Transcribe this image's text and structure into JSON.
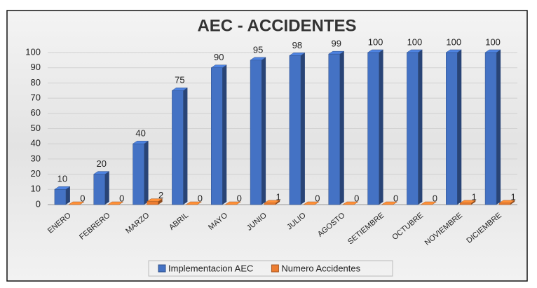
{
  "chart_data": {
    "type": "bar3d",
    "title": "AEC - ACCIDENTES",
    "categories": [
      "ENERO",
      "FEBRERO",
      "MARZO",
      "ABRIL",
      "MAYO",
      "JUNIO",
      "JULIO",
      "AGOSTO",
      "SETIEMBRE",
      "OCTUBRE",
      "NOVIEMBRE",
      "DICIEMBRE"
    ],
    "series": [
      {
        "name": "Implementacion AEC",
        "color": "#4472c4",
        "values": [
          10,
          20,
          40,
          75,
          90,
          95,
          98,
          99,
          100,
          100,
          100,
          100
        ]
      },
      {
        "name": "Numero Accidentes",
        "color": "#ed7d31",
        "values": [
          0,
          0,
          2,
          0,
          0,
          1,
          0,
          0,
          0,
          0,
          1,
          1
        ]
      }
    ],
    "ylim": [
      0,
      100
    ],
    "yticks": [
      0,
      10,
      20,
      30,
      40,
      50,
      60,
      70,
      80,
      90,
      100
    ],
    "grid": true,
    "legend": "bottom"
  }
}
